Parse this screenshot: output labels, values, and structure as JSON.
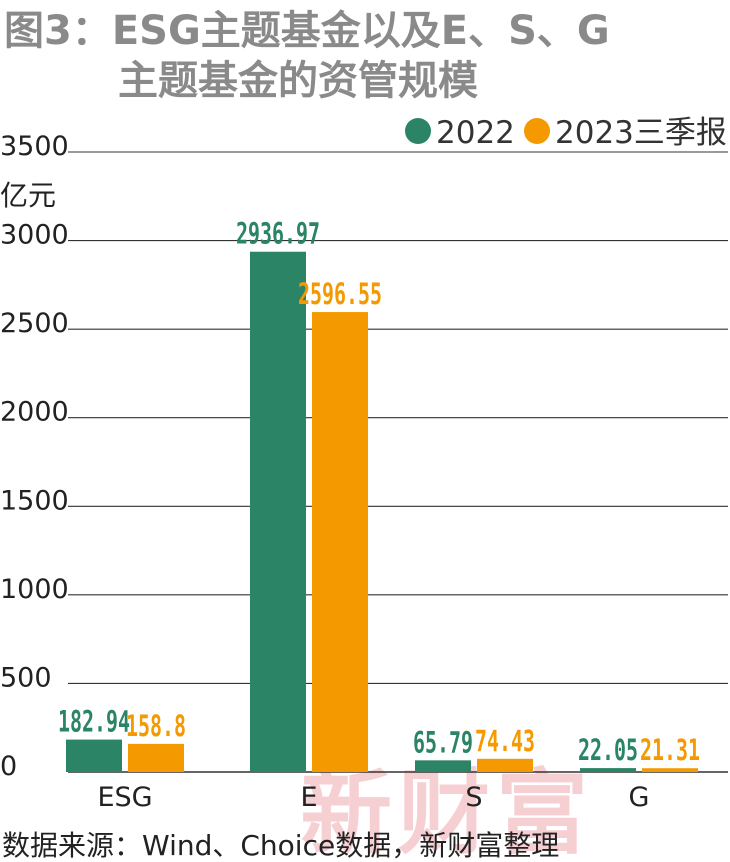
{
  "title_line1": "图3：ESG主题基金以及E、S、G",
  "title_line2": "主题基金的资管规模",
  "unit": "亿元",
  "source": "数据来源：Wind、Choice数据，新财富整理",
  "watermark": "新财富",
  "colors": {
    "series_2022": "#2a8465",
    "series_2023": "#f49a00",
    "title": "#8a8a8a",
    "grid": "#333333"
  },
  "chart_data": {
    "type": "bar",
    "categories": [
      "ESG",
      "E",
      "S",
      "G"
    ],
    "series": [
      {
        "name": "2022",
        "values": [
          182.94,
          2936.97,
          65.79,
          22.05
        ],
        "labels": [
          "182.94",
          "2936.97",
          "65.79",
          "22.05"
        ]
      },
      {
        "name": "2023三季报",
        "values": [
          158.8,
          2596.55,
          74.43,
          21.31
        ],
        "labels": [
          "158.8",
          "2596.55",
          "74.43",
          "21.31"
        ]
      }
    ],
    "yticks": [
      "0",
      "500",
      "1000",
      "1500",
      "2000",
      "2500",
      "3000",
      "3500"
    ],
    "ylim": [
      0,
      3500
    ],
    "grid": true,
    "legend_position": "top-right"
  }
}
